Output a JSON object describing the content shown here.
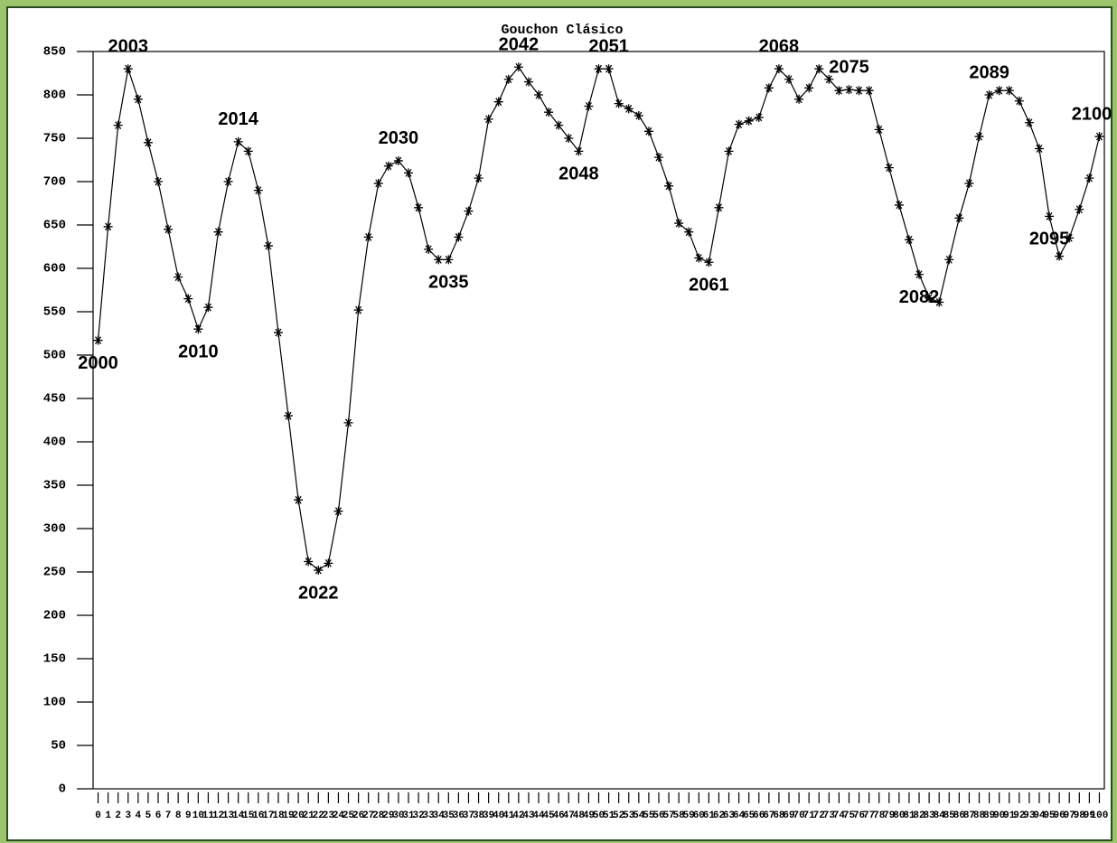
{
  "chart_data": {
    "type": "line",
    "title": "Gouchon Clásico",
    "x": [
      0,
      1,
      2,
      3,
      4,
      5,
      6,
      7,
      8,
      9,
      10,
      11,
      12,
      13,
      14,
      15,
      16,
      17,
      18,
      19,
      20,
      21,
      22,
      23,
      24,
      25,
      26,
      27,
      28,
      29,
      30,
      31,
      32,
      33,
      34,
      35,
      36,
      37,
      38,
      39,
      40,
      41,
      42,
      43,
      44,
      45,
      46,
      47,
      48,
      49,
      50,
      51,
      52,
      53,
      54,
      55,
      56,
      57,
      58,
      59,
      60,
      61,
      62,
      63,
      64,
      65,
      66,
      67,
      68,
      69,
      70,
      71,
      72,
      73,
      74,
      75,
      76,
      77,
      78,
      79,
      80,
      81,
      82,
      83,
      84,
      85,
      86,
      87,
      88,
      89,
      90,
      91,
      92,
      93,
      94,
      95,
      96,
      97,
      98,
      99,
      100
    ],
    "series": [
      {
        "color": "#000000",
        "values": [
          517,
          648,
          765,
          830,
          795,
          745,
          700,
          645,
          590,
          565,
          530,
          555,
          642,
          700,
          746,
          735,
          690,
          626,
          526,
          430,
          333,
          262,
          252,
          260,
          320,
          422,
          552,
          636,
          698,
          718,
          724,
          710,
          670,
          622,
          610,
          610,
          636,
          666,
          704,
          772,
          792,
          818,
          832,
          815,
          800,
          780,
          765,
          750,
          735,
          787,
          830,
          830,
          790,
          784,
          776,
          758,
          728,
          695,
          652,
          642,
          612,
          607,
          670,
          735,
          766,
          770,
          774,
          808,
          830,
          818,
          795,
          808,
          830,
          818,
          805,
          806,
          805,
          805,
          760,
          716,
          673,
          633,
          593,
          566,
          561,
          610,
          658,
          698,
          752,
          800,
          805,
          805,
          793,
          768,
          738,
          660,
          614,
          635,
          668,
          704,
          752
        ]
      }
    ],
    "xlim": [
      -0.5,
      100.5
    ],
    "xticks": [
      0,
      1,
      2,
      3,
      4,
      5,
      6,
      7,
      8,
      9,
      10,
      11,
      12,
      13,
      14,
      15,
      16,
      17,
      18,
      19,
      20,
      21,
      22,
      23,
      24,
      25,
      26,
      27,
      28,
      29,
      30,
      31,
      32,
      33,
      34,
      35,
      36,
      37,
      38,
      39,
      40,
      41,
      42,
      43,
      44,
      45,
      46,
      47,
      48,
      49,
      50,
      51,
      52,
      53,
      54,
      55,
      56,
      57,
      58,
      59,
      60,
      61,
      62,
      63,
      64,
      65,
      66,
      67,
      68,
      69,
      70,
      71,
      72,
      73,
      74,
      75,
      76,
      77,
      78,
      79,
      80,
      81,
      82,
      83,
      84,
      85,
      86,
      87,
      88,
      89,
      90,
      91,
      92,
      93,
      94,
      95,
      96,
      97,
      98,
      99,
      100
    ],
    "ylim": [
      0,
      850
    ],
    "yticks": [
      0,
      50,
      100,
      150,
      200,
      250,
      300,
      350,
      400,
      450,
      500,
      550,
      600,
      650,
      700,
      750,
      800,
      850
    ],
    "annotations": [
      {
        "text": "2000",
        "point": 0,
        "placement": "below"
      },
      {
        "text": "2003",
        "point": 3,
        "placement": "above"
      },
      {
        "text": "2010",
        "point": 10,
        "placement": "below"
      },
      {
        "text": "2014",
        "point": 14,
        "placement": "above"
      },
      {
        "text": "2022",
        "point": 22,
        "placement": "below"
      },
      {
        "text": "2030",
        "point": 30,
        "placement": "above"
      },
      {
        "text": "2035",
        "point": 35,
        "placement": "below"
      },
      {
        "text": "2042",
        "point": 42,
        "placement": "above"
      },
      {
        "text": "2048",
        "point": 48,
        "placement": "below"
      },
      {
        "text": "2051",
        "point": 51,
        "placement": "above"
      },
      {
        "text": "2061",
        "point": 61,
        "placement": "below"
      },
      {
        "text": "2068",
        "point": 68,
        "placement": "above"
      },
      {
        "text": "2075",
        "point": 75,
        "placement": "above"
      },
      {
        "text": "2082",
        "point": 82,
        "placement": "below"
      },
      {
        "text": "2089",
        "point": 89,
        "placement": "above"
      },
      {
        "text": "2095",
        "point": 95,
        "placement": "below"
      },
      {
        "text": "2100",
        "point": 100,
        "placement": "above"
      }
    ]
  }
}
